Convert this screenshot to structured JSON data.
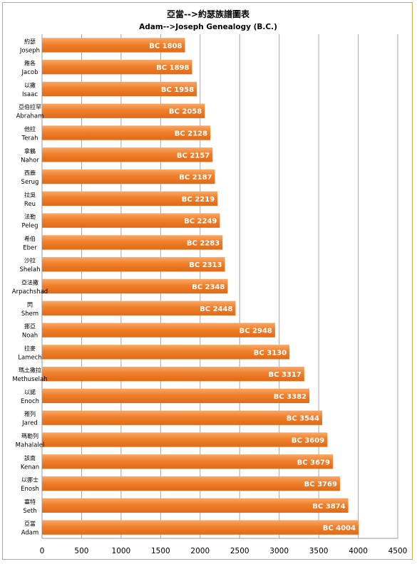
{
  "chart_data": {
    "type": "bar",
    "orientation": "horizontal",
    "title": "亞當-->約瑟族譜圖表",
    "subtitle": "Adam-->Joseph Genealogy (B.C.)",
    "xlim": [
      0,
      4500
    ],
    "xticks": [
      0,
      500,
      1000,
      1500,
      2000,
      2500,
      3000,
      3500,
      4000,
      4500
    ],
    "grid": "vertical",
    "bar_color": "#f07f2b",
    "categories": [
      {
        "zh": "約瑟",
        "en": "Joseph"
      },
      {
        "zh": "雅各",
        "en": "Jacob"
      },
      {
        "zh": "以撒",
        "en": "Isaac"
      },
      {
        "zh": "亞伯拉罕",
        "en": "Abraham"
      },
      {
        "zh": "他拉",
        "en": "Terah"
      },
      {
        "zh": "拿鶴",
        "en": "Nahor"
      },
      {
        "zh": "西鹿",
        "en": "Serug"
      },
      {
        "zh": "拉吳",
        "en": "Reu"
      },
      {
        "zh": "法勒",
        "en": "Peleg"
      },
      {
        "zh": "希伯",
        "en": "Eber"
      },
      {
        "zh": "沙拉",
        "en": "Shelah"
      },
      {
        "zh": "亞法撒",
        "en": "Arpachshad"
      },
      {
        "zh": "閃",
        "en": "Shem"
      },
      {
        "zh": "挪亞",
        "en": "Noah"
      },
      {
        "zh": "拉麥",
        "en": "Lamech"
      },
      {
        "zh": "瑪土撒拉",
        "en": "Methuselah"
      },
      {
        "zh": "以諾",
        "en": "Enoch"
      },
      {
        "zh": "雅列",
        "en": "Jared"
      },
      {
        "zh": "瑪勒列",
        "en": "Mahalalel"
      },
      {
        "zh": "該南",
        "en": "Kenan"
      },
      {
        "zh": "以挪士",
        "en": "Enosh"
      },
      {
        "zh": "塞特",
        "en": "Seth"
      },
      {
        "zh": "亞當",
        "en": "Adam"
      }
    ],
    "values": [
      1808,
      1898,
      1958,
      2058,
      2128,
      2157,
      2187,
      2219,
      2249,
      2283,
      2313,
      2348,
      2448,
      2948,
      3130,
      3317,
      3382,
      3544,
      3609,
      3679,
      3769,
      3874,
      4004
    ],
    "data_label_prefix": "BC "
  }
}
